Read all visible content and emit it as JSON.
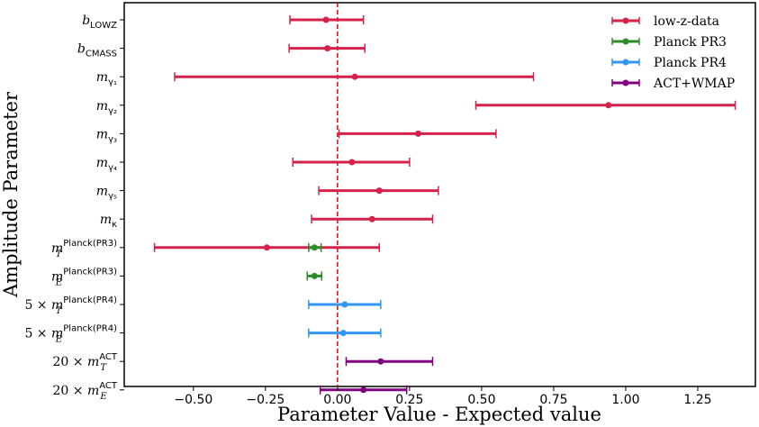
{
  "chart_data": {
    "type": "errorbar",
    "xlabel": "Parameter Value - Expected value",
    "ylabel": "Amplitude Parameter",
    "xlim": [
      -0.74,
      1.45
    ],
    "xticks": [
      -0.5,
      -0.25,
      0.0,
      0.25,
      0.5,
      0.75,
      1.0,
      1.25
    ],
    "xtick_labels": [
      "−0.50",
      "−0.25",
      "0.00",
      "0.25",
      "0.50",
      "0.75",
      "1.00",
      "1.25"
    ],
    "reference_line": {
      "x": 0.0,
      "style": "dashed",
      "color": "#e8000b"
    },
    "grid": false,
    "legend_position": "top-right",
    "series": [
      {
        "name": "low-z-data",
        "color": "#d6214a"
      },
      {
        "name": "Planck PR3",
        "color": "#2f8b2a"
      },
      {
        "name": "Planck PR4",
        "color": "#3396f0"
      },
      {
        "name": "ACT+WMAP",
        "color": "#800080"
      }
    ],
    "parameters": [
      {
        "label": {
          "pre": "",
          "base": "b",
          "sub": "LOWZ",
          "sup": ""
        },
        "entries": [
          {
            "series": 0,
            "value": -0.04,
            "low": -0.165,
            "high": 0.09
          }
        ]
      },
      {
        "label": {
          "pre": "",
          "base": "b",
          "sub": "CMASS",
          "sup": ""
        },
        "entries": [
          {
            "series": 0,
            "value": -0.035,
            "low": -0.168,
            "high": 0.095
          }
        ]
      },
      {
        "label": {
          "pre": "",
          "base": "m",
          "sub": "γ₁",
          "sup": ""
        },
        "entries": [
          {
            "series": 0,
            "value": 0.06,
            "low": -0.565,
            "high": 0.68
          }
        ]
      },
      {
        "label": {
          "pre": "",
          "base": "m",
          "sub": "γ₂",
          "sup": ""
        },
        "entries": [
          {
            "series": 0,
            "value": 0.94,
            "low": 0.48,
            "high": 1.38
          }
        ]
      },
      {
        "label": {
          "pre": "",
          "base": "m",
          "sub": "γ₃",
          "sup": ""
        },
        "entries": [
          {
            "series": 0,
            "value": 0.28,
            "low": 0.005,
            "high": 0.55
          }
        ]
      },
      {
        "label": {
          "pre": "",
          "base": "m",
          "sub": "γ₄",
          "sup": ""
        },
        "entries": [
          {
            "series": 0,
            "value": 0.05,
            "low": -0.155,
            "high": 0.25
          }
        ]
      },
      {
        "label": {
          "pre": "",
          "base": "m",
          "sub": "γ₅",
          "sup": ""
        },
        "entries": [
          {
            "series": 0,
            "value": 0.145,
            "low": -0.065,
            "high": 0.35
          }
        ]
      },
      {
        "label": {
          "pre": "",
          "base": "m",
          "sub": "κ",
          "sup": ""
        },
        "entries": [
          {
            "series": 0,
            "value": 0.12,
            "low": -0.09,
            "high": 0.33
          }
        ]
      },
      {
        "label": {
          "pre": "",
          "base": "m",
          "sub": "T",
          "sup": "Planck(PR3)"
        },
        "entries": [
          {
            "series": 0,
            "value": -0.245,
            "low": -0.635,
            "high": 0.145
          },
          {
            "series": 1,
            "value": -0.08,
            "low": -0.1,
            "high": -0.057
          }
        ]
      },
      {
        "label": {
          "pre": "",
          "base": "m",
          "sub": "E",
          "sup": "Planck(PR3)"
        },
        "entries": [
          {
            "series": 1,
            "value": -0.08,
            "low": -0.105,
            "high": -0.055
          }
        ]
      },
      {
        "label": {
          "pre": "5 × ",
          "base": "m",
          "sub": "T",
          "sup": "Planck(PR4)"
        },
        "entries": [
          {
            "series": 2,
            "value": 0.025,
            "low": -0.1,
            "high": 0.15
          }
        ]
      },
      {
        "label": {
          "pre": "5 × ",
          "base": "m",
          "sub": "E",
          "sup": "Planck(PR4)"
        },
        "entries": [
          {
            "series": 2,
            "value": 0.02,
            "low": -0.1,
            "high": 0.15
          }
        ]
      },
      {
        "label": {
          "pre": "20 × ",
          "base": "m",
          "sub": "T",
          "sup": "ACT"
        },
        "entries": [
          {
            "series": 3,
            "value": 0.15,
            "low": 0.03,
            "high": 0.33
          }
        ]
      },
      {
        "label": {
          "pre": "20 × ",
          "base": "m",
          "sub": "E",
          "sup": "ACT"
        },
        "entries": [
          {
            "series": 3,
            "value": 0.09,
            "low": -0.06,
            "high": 0.24
          }
        ]
      }
    ]
  }
}
